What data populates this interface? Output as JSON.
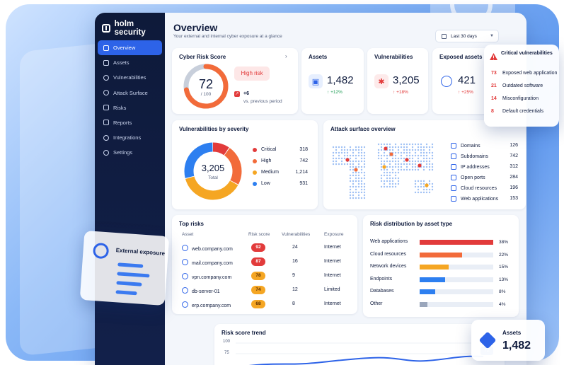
{
  "brand": {
    "name": "holm security"
  },
  "sidebar": {
    "items": [
      {
        "label": "Overview",
        "icon": "home-icon",
        "active": true
      },
      {
        "label": "Assets",
        "icon": "assets-icon"
      },
      {
        "label": "Vulnerabilities",
        "icon": "bug-icon"
      },
      {
        "label": "Attack Surface",
        "icon": "target-icon"
      },
      {
        "label": "Risks",
        "icon": "warning-icon"
      },
      {
        "label": "Reports",
        "icon": "report-icon"
      },
      {
        "label": "Integrations",
        "icon": "plug-icon"
      },
      {
        "label": "Settings",
        "icon": "gear-icon"
      }
    ]
  },
  "header": {
    "title": "Overview",
    "subtitle": "Your external and internal cyber exposure at a glance",
    "date_range": "Last 30 days"
  },
  "risk_score": {
    "title": "Cyber Risk Score",
    "score": "72",
    "max": "/ 100",
    "fraction": 0.72,
    "level": "High risk",
    "delta": "+6",
    "delta_label": "vs. previous period"
  },
  "kpis": [
    {
      "label": "Assets",
      "value": "1,482",
      "delta": "+12%",
      "icon": "asset-icon",
      "color": "#2d63e8"
    },
    {
      "label": "Vulnerabilities",
      "value": "3,205",
      "delta": "+18%",
      "icon": "bug-icon",
      "color": "#e23b3b"
    },
    {
      "label": "Exposed assets",
      "value": "421",
      "delta": "+25%",
      "icon": "globe-icon",
      "color": "#2d63e8"
    }
  ],
  "critical": {
    "title": "Critical vulnerabilities",
    "items": [
      {
        "count": "73",
        "label": "Exposed web application"
      },
      {
        "count": "21",
        "label": "Outdated software"
      },
      {
        "count": "14",
        "label": "Misconfiguration"
      },
      {
        "count": "8",
        "label": "Default credentials"
      }
    ]
  },
  "severity": {
    "title": "Vulnerabilities by severity",
    "total": "3,205",
    "total_label": "Total",
    "rows": [
      {
        "label": "Critical",
        "value": 318,
        "display": "318",
        "color": "#e23b3b"
      },
      {
        "label": "High",
        "value": 742,
        "display": "742",
        "color": "#f26b3a"
      },
      {
        "label": "Medium",
        "value": 1214,
        "display": "1,214",
        "color": "#f5a623"
      },
      {
        "label": "Low",
        "value": 931,
        "display": "931",
        "color": "#2d7ff0"
      }
    ]
  },
  "attack_surface": {
    "title": "Attack surface overview",
    "rows": [
      {
        "label": "Domains",
        "value": "126"
      },
      {
        "label": "Subdomains",
        "value": "742"
      },
      {
        "label": "IP addresses",
        "value": "312"
      },
      {
        "label": "Open ports",
        "value": "284"
      },
      {
        "label": "Cloud resources",
        "value": "196"
      },
      {
        "label": "Web applications",
        "value": "153"
      }
    ]
  },
  "top_risks": {
    "title": "Top risks",
    "columns": [
      "Asset",
      "Risk score",
      "Vulnerabilities",
      "Exposure"
    ],
    "rows": [
      {
        "asset": "web.company.com",
        "score": "92",
        "vulns": "24",
        "exposure": "Internet",
        "color": "#e23b3b"
      },
      {
        "asset": "mail.company.com",
        "score": "87",
        "vulns": "16",
        "exposure": "Internet",
        "color": "#e23b3b"
      },
      {
        "asset": "vpn.company.com",
        "score": "78",
        "vulns": "9",
        "exposure": "Internet",
        "color": "#f5a623"
      },
      {
        "asset": "db-server-01",
        "score": "74",
        "vulns": "12",
        "exposure": "Limited",
        "color": "#f5a623"
      },
      {
        "asset": "erp.company.com",
        "score": "68",
        "vulns": "8",
        "exposure": "Internet",
        "color": "#f5a623"
      }
    ]
  },
  "distribution": {
    "title": "Risk distribution by asset type",
    "rows": [
      {
        "label": "Web applications",
        "pct": 38,
        "display": "38%",
        "color": "#e23b3b"
      },
      {
        "label": "Cloud resources",
        "pct": 22,
        "display": "22%",
        "color": "#f26b3a"
      },
      {
        "label": "Network devices",
        "pct": 15,
        "display": "15%",
        "color": "#f5a623"
      },
      {
        "label": "Endpoints",
        "pct": 13,
        "display": "13%",
        "color": "#2d7ff0"
      },
      {
        "label": "Databases",
        "pct": 8,
        "display": "8%",
        "color": "#2d7ff0"
      },
      {
        "label": "Other",
        "pct": 4,
        "display": "4%",
        "color": "#9aa6bb"
      }
    ]
  },
  "trend": {
    "title": "Risk score trend",
    "ticks": [
      "100",
      "75"
    ],
    "marker": "72"
  },
  "external": {
    "title": "External exposure"
  },
  "assets_float": {
    "label": "Assets",
    "value": "1,482"
  }
}
